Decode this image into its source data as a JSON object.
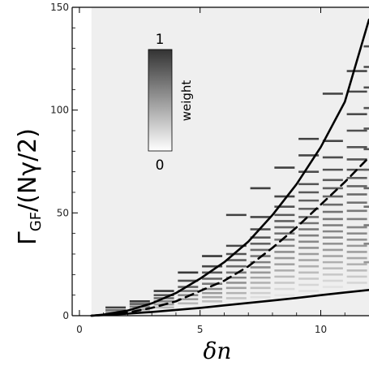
{
  "chart_data": {
    "type": "heatmap",
    "title": "",
    "ylabel": "Γ_GF/(Nγ/2)",
    "xlabel": "δn",
    "xlim": [
      -0.3,
      12
    ],
    "ylim": [
      0,
      150
    ],
    "x_ticks": [
      "0",
      "5",
      "10"
    ],
    "y_ticks": [
      "0",
      "50",
      "100",
      "150"
    ],
    "shaded_region": {
      "x_from": 0.5,
      "x_to": 12,
      "color": "#efefef"
    },
    "colorbar": {
      "title": "weight",
      "min_label": "0",
      "max_label": "1",
      "colors": [
        "#ffffff",
        "#333333"
      ]
    },
    "curves": [
      {
        "style": "solid",
        "points": [
          [
            0.5,
            0
          ],
          [
            1,
            0.5
          ],
          [
            2,
            2.5
          ],
          [
            3,
            6
          ],
          [
            4,
            11
          ],
          [
            5,
            18
          ],
          [
            6,
            26
          ],
          [
            7,
            36
          ],
          [
            8,
            49
          ],
          [
            9,
            64
          ],
          [
            10,
            82
          ],
          [
            11,
            104
          ],
          [
            12,
            144
          ]
        ]
      },
      {
        "style": "dashed",
        "points": [
          [
            0.5,
            0
          ],
          [
            1,
            0.3
          ],
          [
            2,
            1.5
          ],
          [
            3,
            3.8
          ],
          [
            4,
            7
          ],
          [
            5,
            12
          ],
          [
            6,
            17
          ],
          [
            7,
            24
          ],
          [
            8,
            33
          ],
          [
            9,
            43
          ],
          [
            10,
            54
          ],
          [
            11,
            65
          ],
          [
            12,
            77
          ]
        ]
      },
      {
        "style": "solid",
        "points": [
          [
            0.5,
            0
          ],
          [
            1,
            0.3
          ],
          [
            2,
            1
          ],
          [
            3,
            1.8
          ],
          [
            4,
            2.8
          ],
          [
            5,
            3.8
          ],
          [
            6,
            5
          ],
          [
            7,
            6.2
          ],
          [
            8,
            7.4
          ],
          [
            9,
            8.6
          ],
          [
            10,
            10
          ],
          [
            11,
            11.3
          ],
          [
            12,
            12.5
          ]
        ]
      }
    ],
    "series": [
      {
        "x": 1.5,
        "levels": [
          {
            "y": 4,
            "weight": 0.6
          },
          {
            "y": 2.7,
            "weight": 0.45
          },
          {
            "y": 1.5,
            "weight": 0.3
          },
          {
            "y": 0.6,
            "weight": 0.15
          }
        ]
      },
      {
        "x": 2.5,
        "levels": [
          {
            "y": 7,
            "weight": 0.62
          },
          {
            "y": 5.7,
            "weight": 0.5
          },
          {
            "y": 4.4,
            "weight": 0.4
          },
          {
            "y": 3.1,
            "weight": 0.3
          },
          {
            "y": 1.8,
            "weight": 0.2
          }
        ]
      },
      {
        "x": 3.5,
        "levels": [
          {
            "y": 12,
            "weight": 0.62
          },
          {
            "y": 10,
            "weight": 0.52
          },
          {
            "y": 8.5,
            "weight": 0.45
          },
          {
            "y": 7,
            "weight": 0.38
          },
          {
            "y": 5.5,
            "weight": 0.3
          },
          {
            "y": 4,
            "weight": 0.22
          }
        ]
      },
      {
        "x": 4.5,
        "levels": [
          {
            "y": 21,
            "weight": 0.62
          },
          {
            "y": 17,
            "weight": 0.55
          },
          {
            "y": 14,
            "weight": 0.48
          },
          {
            "y": 12,
            "weight": 0.42
          },
          {
            "y": 10,
            "weight": 0.36
          },
          {
            "y": 8,
            "weight": 0.3
          },
          {
            "y": 6,
            "weight": 0.22
          }
        ]
      },
      {
        "x": 5.5,
        "levels": [
          {
            "y": 29,
            "weight": 0.62
          },
          {
            "y": 24,
            "weight": 0.58
          },
          {
            "y": 21,
            "weight": 0.52
          },
          {
            "y": 18,
            "weight": 0.47
          },
          {
            "y": 15.5,
            "weight": 0.42
          },
          {
            "y": 13,
            "weight": 0.37
          },
          {
            "y": 11,
            "weight": 0.32
          },
          {
            "y": 9,
            "weight": 0.27
          },
          {
            "y": 7,
            "weight": 0.2
          }
        ]
      },
      {
        "x": 6.5,
        "levels": [
          {
            "y": 49,
            "weight": 0.6
          },
          {
            "y": 34,
            "weight": 0.58
          },
          {
            "y": 30,
            "weight": 0.54
          },
          {
            "y": 27,
            "weight": 0.5
          },
          {
            "y": 24,
            "weight": 0.46
          },
          {
            "y": 21,
            "weight": 0.42
          },
          {
            "y": 18.5,
            "weight": 0.38
          },
          {
            "y": 16,
            "weight": 0.34
          },
          {
            "y": 13.5,
            "weight": 0.29
          },
          {
            "y": 11,
            "weight": 0.24
          },
          {
            "y": 8.5,
            "weight": 0.18
          }
        ]
      },
      {
        "x": 7.5,
        "levels": [
          {
            "y": 62,
            "weight": 0.6
          },
          {
            "y": 48,
            "weight": 0.58
          },
          {
            "y": 42,
            "weight": 0.55
          },
          {
            "y": 38,
            "weight": 0.52
          },
          {
            "y": 35,
            "weight": 0.49
          },
          {
            "y": 32,
            "weight": 0.46
          },
          {
            "y": 29,
            "weight": 0.43
          },
          {
            "y": 26,
            "weight": 0.4
          },
          {
            "y": 23.5,
            "weight": 0.36
          },
          {
            "y": 21,
            "weight": 0.32
          },
          {
            "y": 18.5,
            "weight": 0.28
          },
          {
            "y": 16,
            "weight": 0.24
          },
          {
            "y": 13.5,
            "weight": 0.2
          },
          {
            "y": 11,
            "weight": 0.15
          },
          {
            "y": 9,
            "weight": 0.1
          }
        ]
      },
      {
        "x": 8.5,
        "levels": [
          {
            "y": 72,
            "weight": 0.6
          },
          {
            "y": 58,
            "weight": 0.58
          },
          {
            "y": 53,
            "weight": 0.55
          },
          {
            "y": 49,
            "weight": 0.52
          },
          {
            "y": 46,
            "weight": 0.5
          },
          {
            "y": 43,
            "weight": 0.47
          },
          {
            "y": 40,
            "weight": 0.44
          },
          {
            "y": 37,
            "weight": 0.41
          },
          {
            "y": 34,
            "weight": 0.38
          },
          {
            "y": 31,
            "weight": 0.35
          },
          {
            "y": 28,
            "weight": 0.32
          },
          {
            "y": 25,
            "weight": 0.29
          },
          {
            "y": 22,
            "weight": 0.25
          },
          {
            "y": 19,
            "weight": 0.21
          },
          {
            "y": 16,
            "weight": 0.17
          },
          {
            "y": 13,
            "weight": 0.12
          },
          {
            "y": 10,
            "weight": 0.08
          }
        ]
      },
      {
        "x": 9.5,
        "levels": [
          {
            "y": 86,
            "weight": 0.6
          },
          {
            "y": 78,
            "weight": 0.58
          },
          {
            "y": 70,
            "weight": 0.56
          },
          {
            "y": 64,
            "weight": 0.54
          },
          {
            "y": 60,
            "weight": 0.52
          },
          {
            "y": 56,
            "weight": 0.5
          },
          {
            "y": 52,
            "weight": 0.48
          },
          {
            "y": 48,
            "weight": 0.46
          },
          {
            "y": 45,
            "weight": 0.44
          },
          {
            "y": 42,
            "weight": 0.42
          },
          {
            "y": 39,
            "weight": 0.4
          },
          {
            "y": 36,
            "weight": 0.37
          },
          {
            "y": 33,
            "weight": 0.34
          },
          {
            "y": 30,
            "weight": 0.31
          },
          {
            "y": 27,
            "weight": 0.28
          },
          {
            "y": 24,
            "weight": 0.25
          },
          {
            "y": 21,
            "weight": 0.21
          },
          {
            "y": 18,
            "weight": 0.17
          },
          {
            "y": 15,
            "weight": 0.13
          },
          {
            "y": 12,
            "weight": 0.09
          }
        ]
      },
      {
        "x": 10.5,
        "levels": [
          {
            "y": 108,
            "weight": 0.58
          },
          {
            "y": 85,
            "weight": 0.58
          },
          {
            "y": 77,
            "weight": 0.56
          },
          {
            "y": 71,
            "weight": 0.54
          },
          {
            "y": 66,
            "weight": 0.52
          },
          {
            "y": 62,
            "weight": 0.5
          },
          {
            "y": 58,
            "weight": 0.48
          },
          {
            "y": 54,
            "weight": 0.46
          },
          {
            "y": 50.5,
            "weight": 0.44
          },
          {
            "y": 47,
            "weight": 0.42
          },
          {
            "y": 44,
            "weight": 0.4
          },
          {
            "y": 41,
            "weight": 0.38
          },
          {
            "y": 38,
            "weight": 0.36
          },
          {
            "y": 35,
            "weight": 0.34
          },
          {
            "y": 32,
            "weight": 0.31
          },
          {
            "y": 29,
            "weight": 0.28
          },
          {
            "y": 26,
            "weight": 0.25
          },
          {
            "y": 23,
            "weight": 0.21
          },
          {
            "y": 20,
            "weight": 0.17
          },
          {
            "y": 17,
            "weight": 0.13
          },
          {
            "y": 14,
            "weight": 0.09
          }
        ]
      },
      {
        "x": 11.5,
        "levels": [
          {
            "y": 119,
            "weight": 0.58
          },
          {
            "y": 109,
            "weight": 0.57
          },
          {
            "y": 98,
            "weight": 0.56
          },
          {
            "y": 90,
            "weight": 0.55
          },
          {
            "y": 82,
            "weight": 0.54
          },
          {
            "y": 76,
            "weight": 0.53
          },
          {
            "y": 71,
            "weight": 0.52
          },
          {
            "y": 67,
            "weight": 0.5
          },
          {
            "y": 63,
            "weight": 0.48
          },
          {
            "y": 59,
            "weight": 0.46
          },
          {
            "y": 55,
            "weight": 0.44
          },
          {
            "y": 51,
            "weight": 0.42
          },
          {
            "y": 47,
            "weight": 0.4
          },
          {
            "y": 43,
            "weight": 0.38
          },
          {
            "y": 40,
            "weight": 0.36
          },
          {
            "y": 37,
            "weight": 0.34
          },
          {
            "y": 34,
            "weight": 0.32
          },
          {
            "y": 31,
            "weight": 0.3
          },
          {
            "y": 28,
            "weight": 0.27
          },
          {
            "y": 25,
            "weight": 0.24
          },
          {
            "y": 22,
            "weight": 0.21
          },
          {
            "y": 19,
            "weight": 0.17
          },
          {
            "y": 16,
            "weight": 0.13
          }
        ]
      },
      {
        "x": 12.2,
        "levels": [
          {
            "y": 131,
            "weight": 0.55
          },
          {
            "y": 121,
            "weight": 0.55
          },
          {
            "y": 111,
            "weight": 0.55
          },
          {
            "y": 101,
            "weight": 0.54
          },
          {
            "y": 91,
            "weight": 0.53
          },
          {
            "y": 81,
            "weight": 0.52
          },
          {
            "y": 71,
            "weight": 0.5
          },
          {
            "y": 62,
            "weight": 0.48
          },
          {
            "y": 53,
            "weight": 0.45
          },
          {
            "y": 44,
            "weight": 0.42
          },
          {
            "y": 35,
            "weight": 0.38
          },
          {
            "y": 26,
            "weight": 0.32
          }
        ]
      }
    ]
  }
}
